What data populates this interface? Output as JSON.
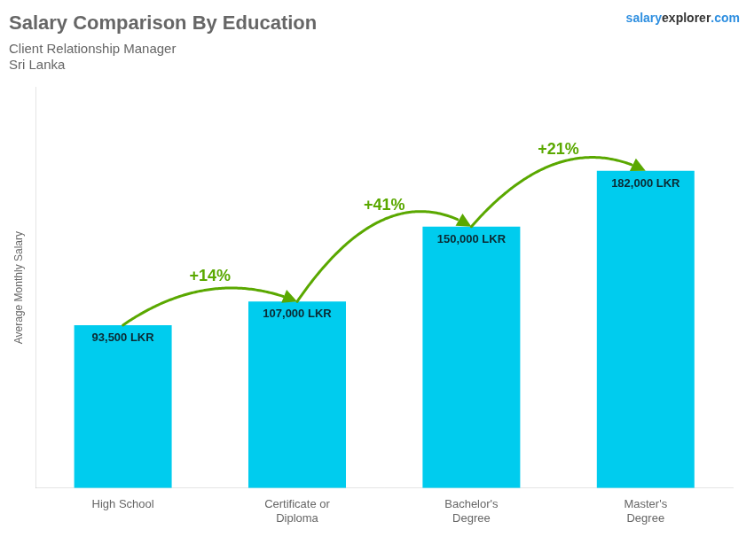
{
  "chart_data": {
    "type": "bar",
    "title": "Salary Comparison By Education",
    "subtitle": "Client Relationship Manager",
    "country": "Sri Lanka",
    "watermark": [
      "salary",
      "explorer",
      ".com"
    ],
    "ylabel": "Average Monthly Salary",
    "categories": [
      "High School",
      "Certificate or\nDiploma",
      "Bachelor's\nDegree",
      "Master's\nDegree"
    ],
    "values": [
      93500,
      107000,
      150000,
      182000
    ],
    "value_labels": [
      "93,500 LKR",
      "107,000 LKR",
      "150,000 LKR",
      "182,000 LKR"
    ],
    "data_labels": true,
    "annotations": [
      "+14%",
      "+41%",
      "+21%"
    ],
    "color": "#00ccee",
    "ylim": [
      0,
      230000
    ],
    "grid": false,
    "tick_labels": "x"
  }
}
